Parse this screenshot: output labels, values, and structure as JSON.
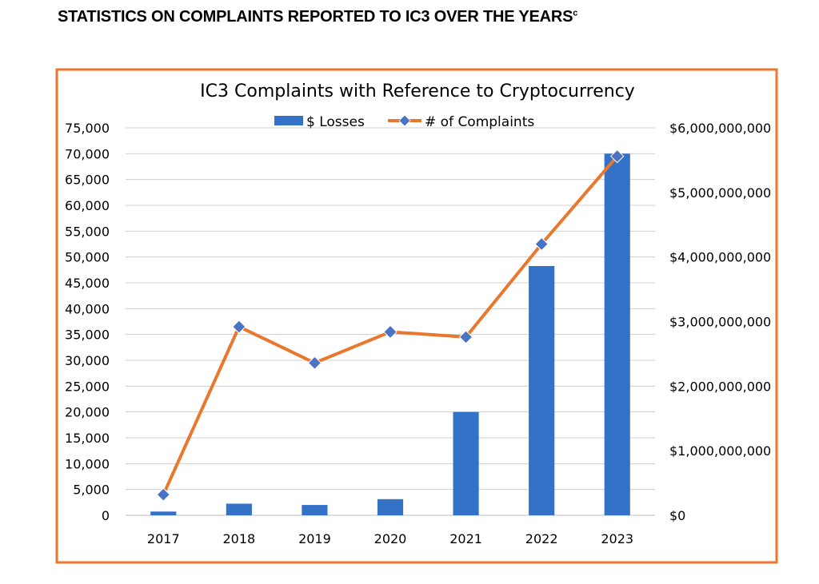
{
  "heading": {
    "text": "STATISTICS ON COMPLAINTS REPORTED TO IC3 OVER THE YEARS",
    "footnote_mark": "c"
  },
  "colors": {
    "frame": "#E9772E",
    "bar": "#3472C8",
    "line": "#E9772E",
    "marker": "#4A73C4",
    "grid": "#D0D0D0",
    "text": "#000000"
  },
  "chart_data": {
    "type": "bar",
    "title": "IC3 Complaints with Reference to Cryptocurrency",
    "categories": [
      "2017",
      "2018",
      "2019",
      "2020",
      "2021",
      "2022",
      "2023"
    ],
    "series": [
      {
        "name": "$ Losses",
        "type": "bar",
        "axis": "right",
        "values": [
          58000000,
          180000000,
          160000000,
          250000000,
          1600000000,
          3860000000,
          5600000000
        ]
      },
      {
        "name": "# of Complaints",
        "type": "line",
        "axis": "left",
        "marker": "diamond",
        "values": [
          4000,
          36500,
          29500,
          35500,
          34500,
          52500,
          69500
        ]
      }
    ],
    "y_left": {
      "min": 0,
      "max": 75000,
      "step": 5000,
      "ticks": [
        "0",
        "5,000",
        "10,000",
        "15,000",
        "20,000",
        "25,000",
        "30,000",
        "35,000",
        "40,000",
        "45,000",
        "50,000",
        "55,000",
        "60,000",
        "65,000",
        "70,000",
        "75,000"
      ]
    },
    "y_right": {
      "min": 0,
      "max": 6000000000,
      "step": 1000000000,
      "ticks": [
        "$0",
        "$1,000,000,000",
        "$2,000,000,000",
        "$3,000,000,000",
        "$4,000,000,000",
        "$5,000,000,000",
        "$6,000,000,000"
      ]
    },
    "grid": true,
    "legend": "top-center"
  }
}
